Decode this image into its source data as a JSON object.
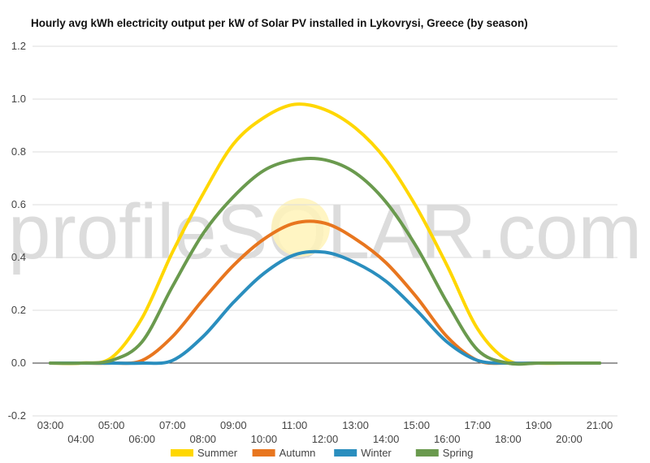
{
  "chart_data": {
    "type": "line",
    "title": "Hourly avg kWh electricity output per kW of Solar PV installed in Lykovrysi, Greece (by season)",
    "xlabel": "",
    "ylabel": "",
    "x": [
      "03:00",
      "04:00",
      "05:00",
      "06:00",
      "07:00",
      "08:00",
      "09:00",
      "10:00",
      "11:00",
      "12:00",
      "13:00",
      "14:00",
      "15:00",
      "16:00",
      "17:00",
      "18:00",
      "19:00",
      "20:00",
      "21:00"
    ],
    "x_tick_labels_upper": [
      "03:00",
      "05:00",
      "07:00",
      "09:00",
      "11:00",
      "13:00",
      "15:00",
      "17:00",
      "19:00",
      "21:00"
    ],
    "x_tick_labels_lower": [
      "04:00",
      "06:00",
      "08:00",
      "10:00",
      "12:00",
      "14:00",
      "16:00",
      "18:00",
      "20:00"
    ],
    "ylim": [
      -0.2,
      1.2
    ],
    "y_ticks": [
      "-0.2",
      "0.0",
      "0.2",
      "0.4",
      "0.6",
      "0.8",
      "1.0",
      "1.2"
    ],
    "grid": true,
    "legend_position": "bottom",
    "watermark": "profileSOLAR.com",
    "series": [
      {
        "name": "Summer",
        "color": "#FFD700",
        "values": [
          0,
          0,
          0.02,
          0.17,
          0.42,
          0.64,
          0.83,
          0.93,
          0.98,
          0.96,
          0.89,
          0.77,
          0.59,
          0.37,
          0.13,
          0.01,
          0,
          0,
          0
        ]
      },
      {
        "name": "Autumn",
        "color": "#E8761F",
        "values": [
          0,
          0,
          0,
          0.01,
          0.1,
          0.24,
          0.37,
          0.47,
          0.53,
          0.53,
          0.47,
          0.38,
          0.25,
          0.1,
          0.01,
          0,
          0,
          0,
          0
        ]
      },
      {
        "name": "Winter",
        "color": "#2A8EBE",
        "values": [
          0,
          0,
          0,
          0,
          0.01,
          0.1,
          0.23,
          0.34,
          0.41,
          0.42,
          0.38,
          0.31,
          0.2,
          0.08,
          0.01,
          0,
          0,
          0,
          0
        ]
      },
      {
        "name": "Spring",
        "color": "#6A9A4E",
        "values": [
          0,
          0,
          0.01,
          0.08,
          0.29,
          0.49,
          0.63,
          0.73,
          0.77,
          0.77,
          0.72,
          0.61,
          0.44,
          0.23,
          0.05,
          0,
          0,
          0,
          0
        ]
      }
    ]
  }
}
